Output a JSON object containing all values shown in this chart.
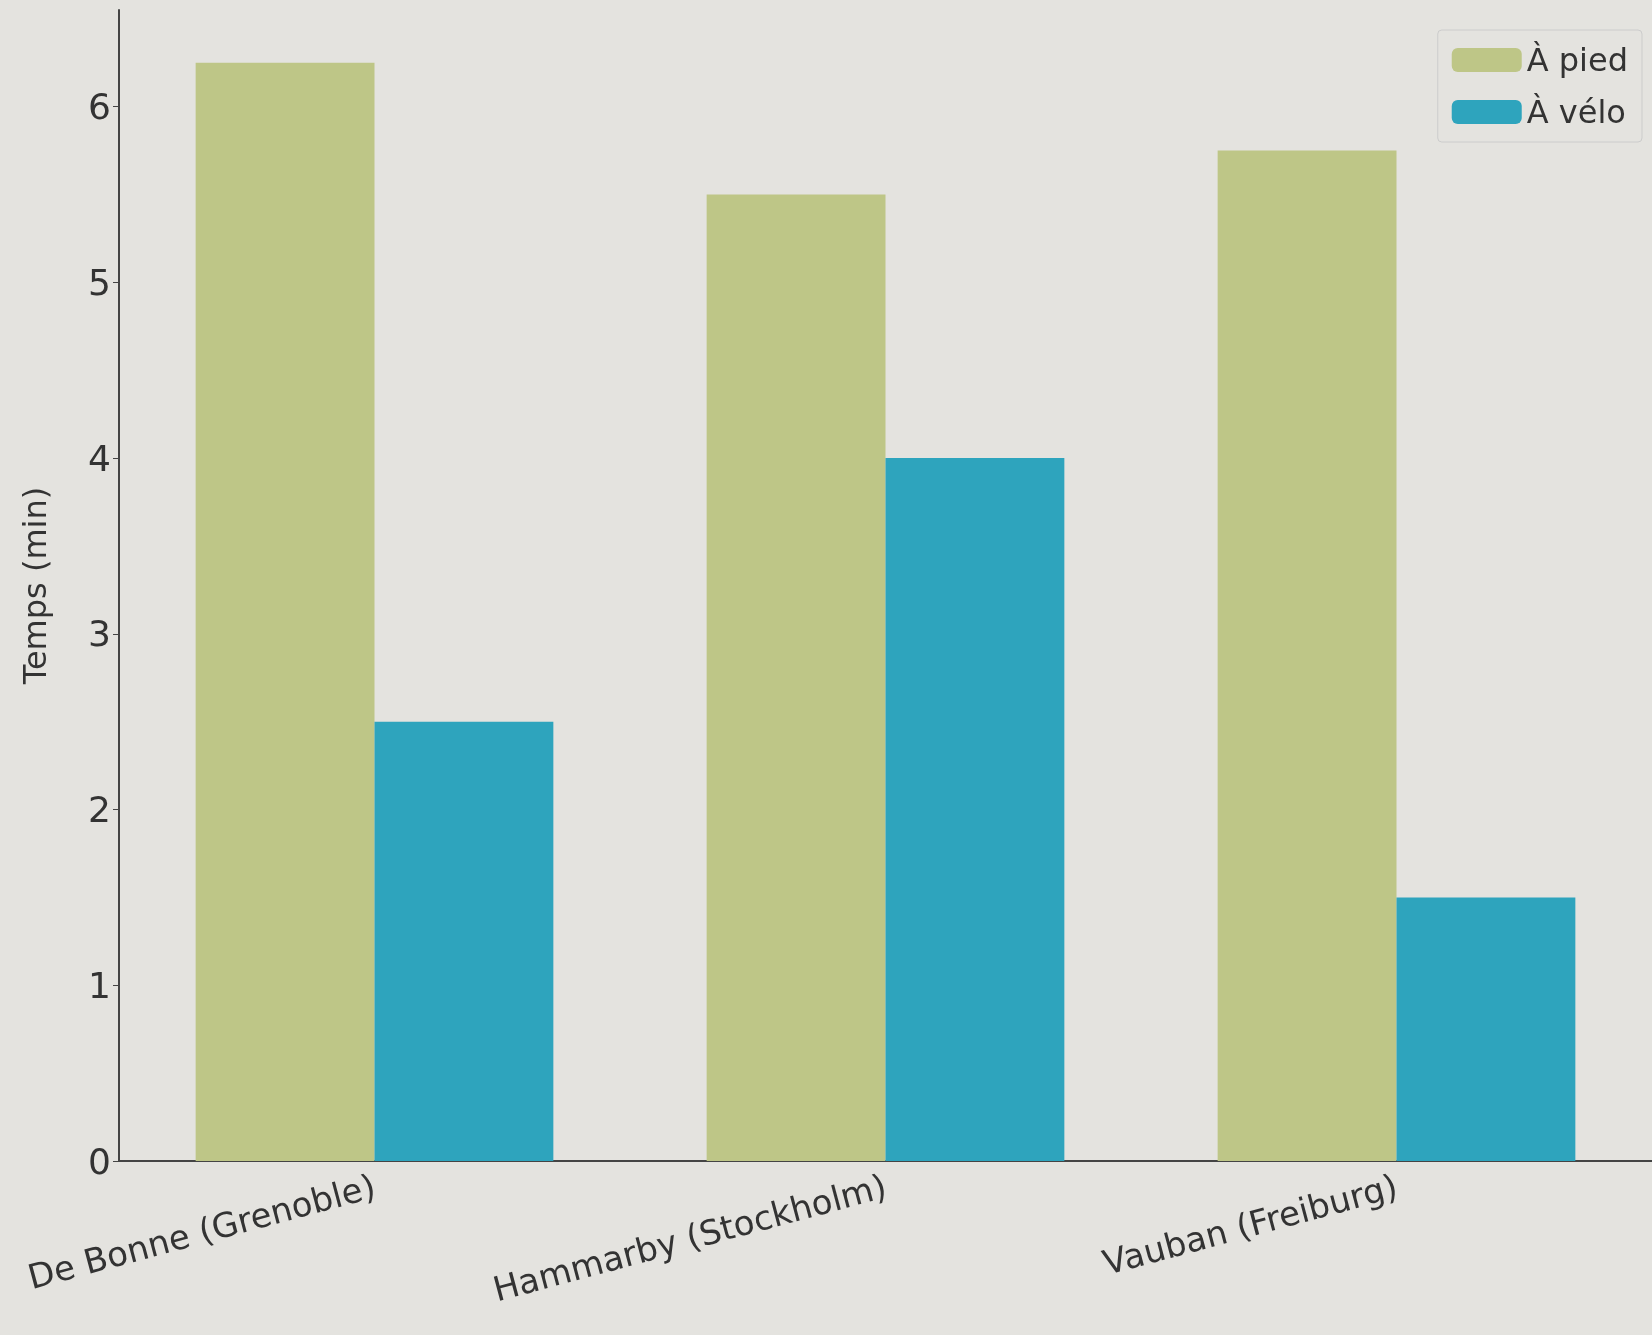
{
  "chart_data": {
    "type": "bar",
    "ylabel": "Temps (min)",
    "categories": [
      "De Bonne (Grenoble)",
      "Hammarby (Stockholm)",
      "Vauban (Freiburg)"
    ],
    "series": [
      {
        "name": "À pied",
        "color": "#bec687",
        "values": [
          6.25,
          5.5,
          5.75
        ]
      },
      {
        "name": "À vélo",
        "color": "#2ea4bd",
        "values": [
          2.5,
          4.0,
          1.5
        ]
      }
    ],
    "ylim": [
      0,
      6.55
    ],
    "yticks": [
      0,
      1,
      2,
      3,
      4,
      5,
      6
    ],
    "legend": "top right"
  }
}
